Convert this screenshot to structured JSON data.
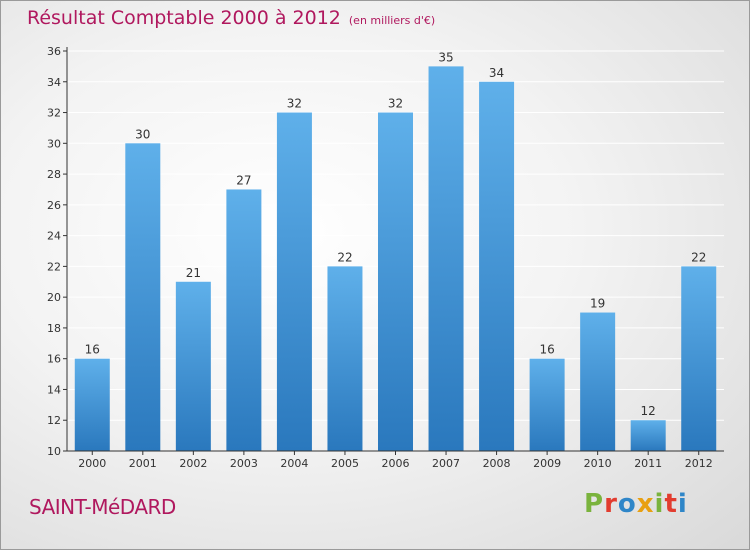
{
  "chart_data": {
    "type": "bar",
    "title": "Résultat Comptable 2000 à 2012",
    "subtitle": "(en milliers d'€)",
    "xlabel": "",
    "ylabel": "",
    "categories": [
      "2000",
      "2001",
      "2002",
      "2003",
      "2004",
      "2005",
      "2006",
      "2007",
      "2008",
      "2009",
      "2010",
      "2011",
      "2012"
    ],
    "values": [
      16,
      30,
      21,
      27,
      32,
      22,
      32,
      35,
      34,
      16,
      19,
      12,
      22
    ],
    "ylim": [
      10,
      36
    ],
    "yticks": [
      10,
      12,
      14,
      16,
      18,
      20,
      22,
      24,
      26,
      28,
      30,
      32,
      34,
      36
    ],
    "grid": true,
    "bar_color": "#3d92d4",
    "legend": "none"
  },
  "footer": {
    "location": "SAINT-MéDARD",
    "brand": "Proxiti",
    "brand_colors": [
      "#7ab33d",
      "#e23c2f",
      "#2f86c8",
      "#e8a012",
      "#7ab33d",
      "#e23c2f",
      "#2f86c8"
    ]
  },
  "colors": {
    "title": "#b0185e",
    "axis": "#333333",
    "grid": "#ffffff"
  }
}
